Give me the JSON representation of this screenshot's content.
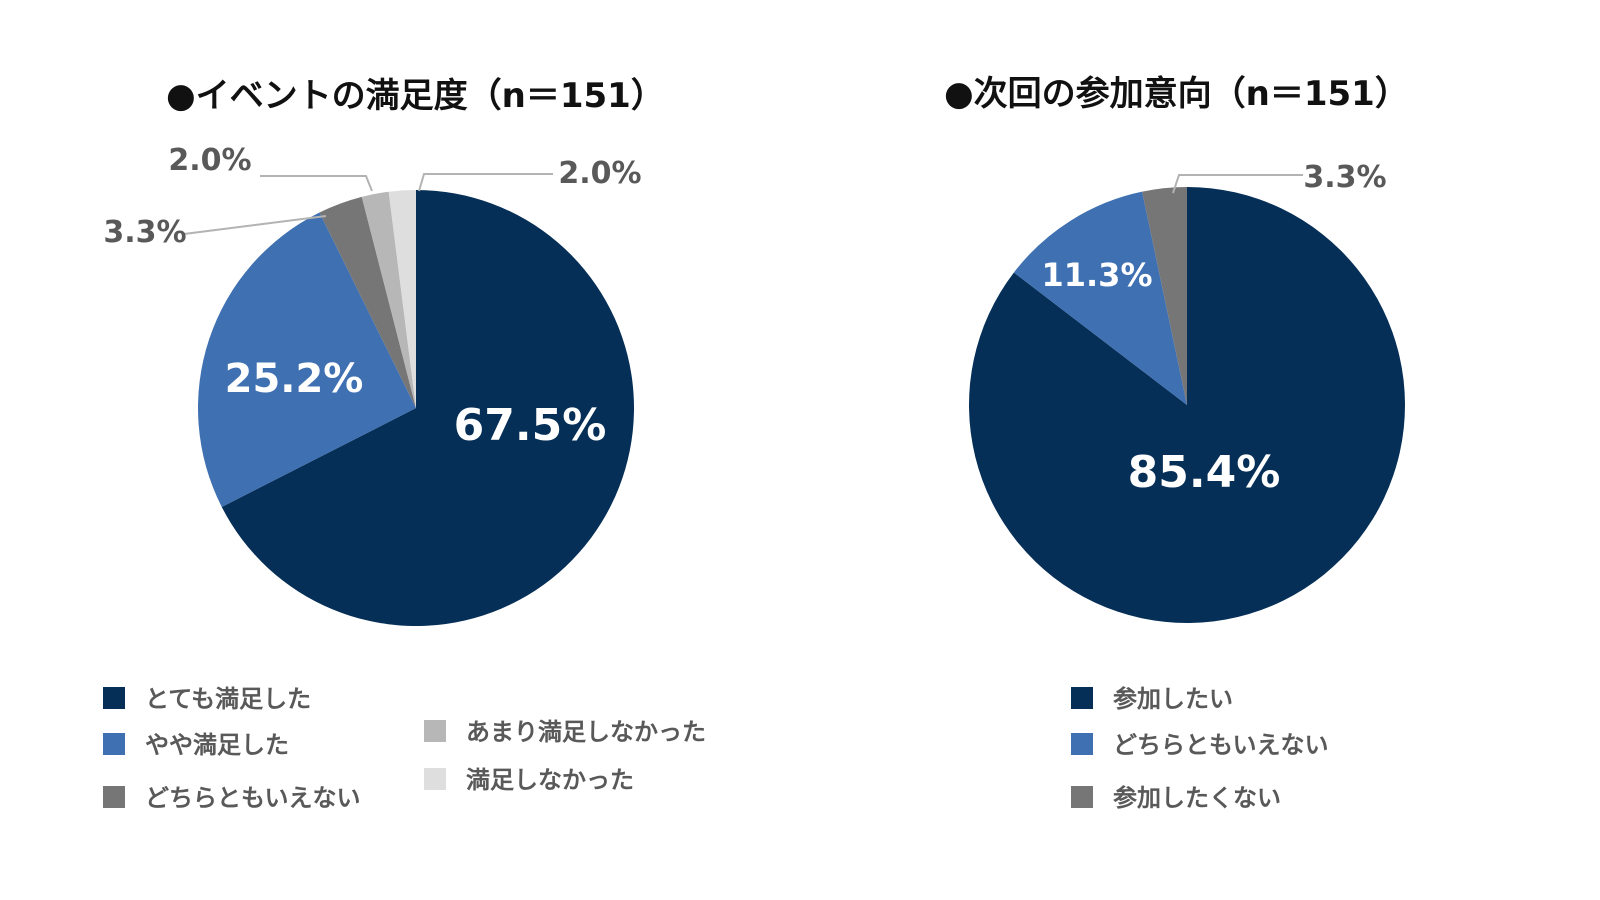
{
  "chart_data": [
    {
      "type": "pie",
      "title": "●イベントの満足度（n＝151）",
      "categories": [
        "とても満足した",
        "やや満足した",
        "どちらともいえない",
        "あまり満足しなかった",
        "満足しなかった"
      ],
      "values": [
        67.5,
        25.2,
        3.3,
        2.0,
        2.0
      ],
      "value_labels": [
        "67.5%",
        "25.2%",
        "3.3%",
        "2.0%",
        "2.0%"
      ],
      "colors": [
        "#062f57",
        "#3e70b2",
        "#767676",
        "#b7b7b7",
        "#dedede"
      ],
      "legend_placement": "bottom"
    },
    {
      "type": "pie",
      "title": "●次回の参加意向（n＝151）",
      "categories": [
        "参加したい",
        "どちらともいえない",
        "参加したくない"
      ],
      "values": [
        85.4,
        11.3,
        3.3
      ],
      "value_labels": [
        "85.4%",
        "11.3%",
        "3.3%"
      ],
      "colors": [
        "#062f57",
        "#3e70b2",
        "#767676"
      ],
      "legend_placement": "bottom"
    }
  ]
}
